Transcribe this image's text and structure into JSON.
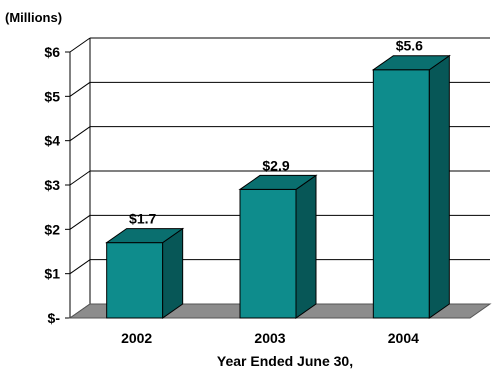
{
  "chart_data": {
    "type": "bar",
    "unit_label": "(Millions)",
    "categories": [
      "2002",
      "2003",
      "2004"
    ],
    "values": [
      1.7,
      2.9,
      5.6
    ],
    "value_labels": [
      "$1.7",
      "$2.9",
      "$5.6"
    ],
    "xlabel": "Year Ended June 30,",
    "ylabel": "",
    "ylim": [
      0,
      6
    ],
    "y_ticks": [
      {
        "value": 0,
        "label": "$-"
      },
      {
        "value": 1,
        "label": "$1"
      },
      {
        "value": 2,
        "label": "$2"
      },
      {
        "value": 3,
        "label": "$3"
      },
      {
        "value": 4,
        "label": "$4"
      },
      {
        "value": 5,
        "label": "$5"
      },
      {
        "value": 6,
        "label": "$6"
      }
    ],
    "grid": true,
    "legend": "none",
    "colors": {
      "bar_front": "#0e8c8c",
      "bar_side": "#075757",
      "bar_top": "#0a6f6f",
      "floor": "#8c8c8c",
      "grid": "#000000"
    }
  }
}
